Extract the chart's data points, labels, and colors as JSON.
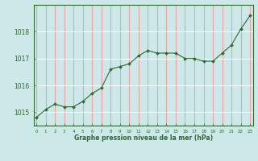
{
  "x": [
    0,
    1,
    2,
    3,
    4,
    5,
    6,
    7,
    8,
    9,
    10,
    11,
    12,
    13,
    14,
    15,
    16,
    17,
    18,
    19,
    20,
    21,
    22,
    23
  ],
  "y": [
    1014.8,
    1015.1,
    1015.3,
    1015.2,
    1015.2,
    1015.4,
    1015.7,
    1015.9,
    1016.6,
    1016.7,
    1016.8,
    1017.1,
    1017.3,
    1017.2,
    1017.2,
    1017.2,
    1017.0,
    1017.0,
    1016.9,
    1016.9,
    1017.2,
    1017.5,
    1018.1,
    1018.6
  ],
  "line_color": "#2d6a2d",
  "marker": "D",
  "marker_size": 2.0,
  "bg_color": "#cce8e8",
  "grid_color_v": "#f0a0a0",
  "grid_color_h": "#ffffff",
  "axis_color": "#2d6a2d",
  "tick_label_color": "#2d6a2d",
  "xlabel": "Graphe pression niveau de la mer (hPa)",
  "xlabel_color": "#2d6a2d",
  "yticks": [
    1015,
    1016,
    1017,
    1018
  ],
  "xticks": [
    0,
    1,
    2,
    3,
    4,
    5,
    6,
    7,
    8,
    9,
    10,
    11,
    12,
    13,
    14,
    15,
    16,
    17,
    18,
    19,
    20,
    21,
    22,
    23
  ],
  "ylim": [
    1014.5,
    1019.0
  ],
  "xlim": [
    -0.3,
    23.3
  ]
}
